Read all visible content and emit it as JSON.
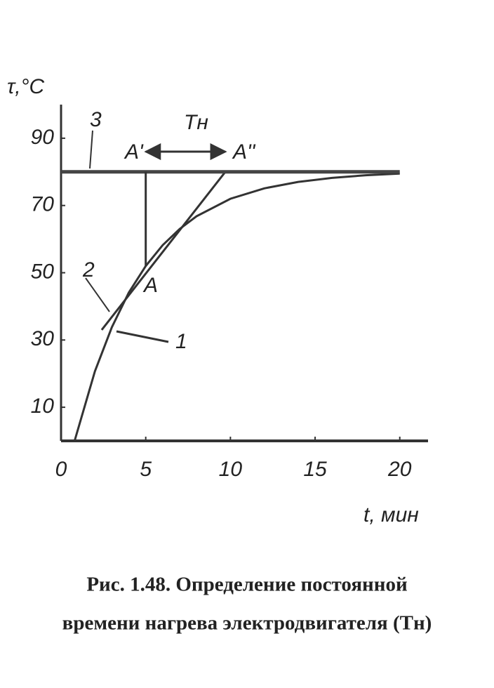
{
  "chart_data": {
    "type": "line",
    "y_label": "τ,°C",
    "x_label": "t, мин",
    "caption": [
      "Рис. 1.48. Определение постоянной",
      "времени нагрева электродвигателя (Tн)"
    ],
    "annotations": [
      "1",
      "2",
      "3",
      "A",
      "A'",
      "A''",
      "Tн"
    ],
    "xlim": [
      0,
      22
    ],
    "ylim": [
      0,
      100
    ],
    "xticks": [
      0,
      5,
      10,
      15,
      20
    ],
    "yticks": [
      10,
      30,
      50,
      70,
      90
    ],
    "series": [
      {
        "color": "#333333",
        "x": [
          0.8,
          2,
          3,
          4,
          5,
          6,
          7,
          8,
          10,
          12,
          14,
          16,
          18,
          20
        ],
        "values": [
          0,
          20.7,
          33.8,
          44.1,
          52,
          58.2,
          63,
          66.8,
          72,
          75.1,
          77,
          78.2,
          79,
          79.5
        ]
      },
      {
        "color": "#333333",
        "x": [
          2.4,
          9.7
        ],
        "values": [
          33,
          80
        ]
      },
      {
        "color": "#444444",
        "x": [
          0,
          20
        ],
        "values": [
          80,
          80
        ]
      },
      {
        "color": "#333333",
        "x": [
          5,
          5
        ],
        "values": [
          52,
          80
        ]
      },
      {
        "color": "#333333",
        "x": [
          5,
          9.7
        ],
        "values": [
          86,
          86
        ]
      }
    ]
  }
}
